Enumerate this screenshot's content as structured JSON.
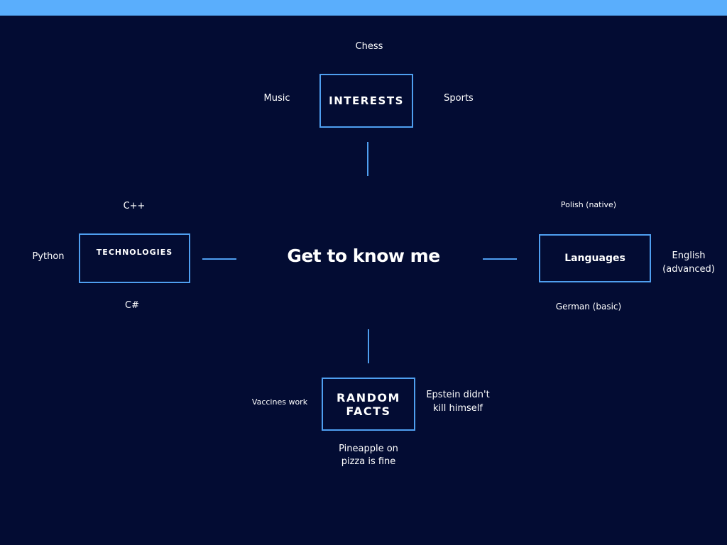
{
  "title": "Get to know me",
  "colors": {
    "background": "#030c33",
    "accent_bar": "#5aaefc",
    "box_border": "#4f9ff0",
    "text": "#ffffff"
  },
  "nodes": {
    "interests": {
      "label": "INTERESTS",
      "items": {
        "top": "Chess",
        "left": "Music",
        "right": "Sports"
      }
    },
    "technologies": {
      "label": "TECHNOLOGIES",
      "items": {
        "top": "C++",
        "left": "Python",
        "bottom": "C#"
      }
    },
    "languages": {
      "label": "Languages",
      "items": {
        "top": "Polish (native)",
        "right_line1": "English",
        "right_line2": "(advanced)",
        "bottom": "German (basic)"
      }
    },
    "random_facts": {
      "label_line1": "RANDOM",
      "label_line2": "FACTS",
      "items": {
        "left": "Vaccines work",
        "right_line1": "Epstein didn't",
        "right_line2": "kill himself",
        "bottom_line1": "Pineapple on",
        "bottom_line2": "pizza is fine"
      }
    }
  }
}
